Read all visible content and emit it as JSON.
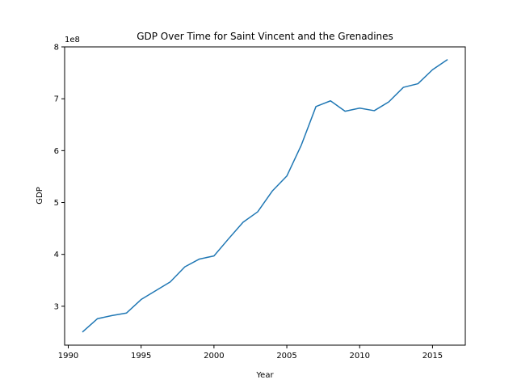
{
  "chart_data": {
    "type": "line",
    "title": "GDP Over Time for Saint Vincent and the Grenadines",
    "xlabel": "Year",
    "ylabel": "GDP",
    "y_offset_label": "1e8",
    "xlim": [
      1989.75,
      2017.25
    ],
    "ylim": [
      2.25,
      8.0
    ],
    "y_scale_note": "values in units of 1e8",
    "grid": false,
    "legend": "none",
    "x_ticks": [
      1990,
      1995,
      2000,
      2005,
      2010,
      2015
    ],
    "x_tick_labels": [
      "1990",
      "1995",
      "2000",
      "2005",
      "2010",
      "2015"
    ],
    "y_ticks": [
      3,
      4,
      5,
      6,
      7,
      8
    ],
    "y_tick_labels": [
      "3",
      "4",
      "5",
      "6",
      "7",
      "8"
    ],
    "series": [
      {
        "color": "#1f77b4",
        "x": [
          1991,
          1992,
          1993,
          1994,
          1995,
          1996,
          1997,
          1998,
          1999,
          2000,
          2001,
          2002,
          2003,
          2004,
          2005,
          2006,
          2007,
          2008,
          2009,
          2010,
          2011,
          2012,
          2013,
          2014,
          2015,
          2016
        ],
        "y": [
          2.51,
          2.76,
          2.82,
          2.87,
          3.13,
          3.3,
          3.47,
          3.76,
          3.91,
          3.97,
          4.3,
          4.62,
          4.82,
          5.22,
          5.51,
          6.11,
          6.85,
          6.96,
          6.76,
          6.82,
          6.77,
          6.94,
          7.22,
          7.29,
          7.56,
          7.75
        ]
      }
    ]
  }
}
